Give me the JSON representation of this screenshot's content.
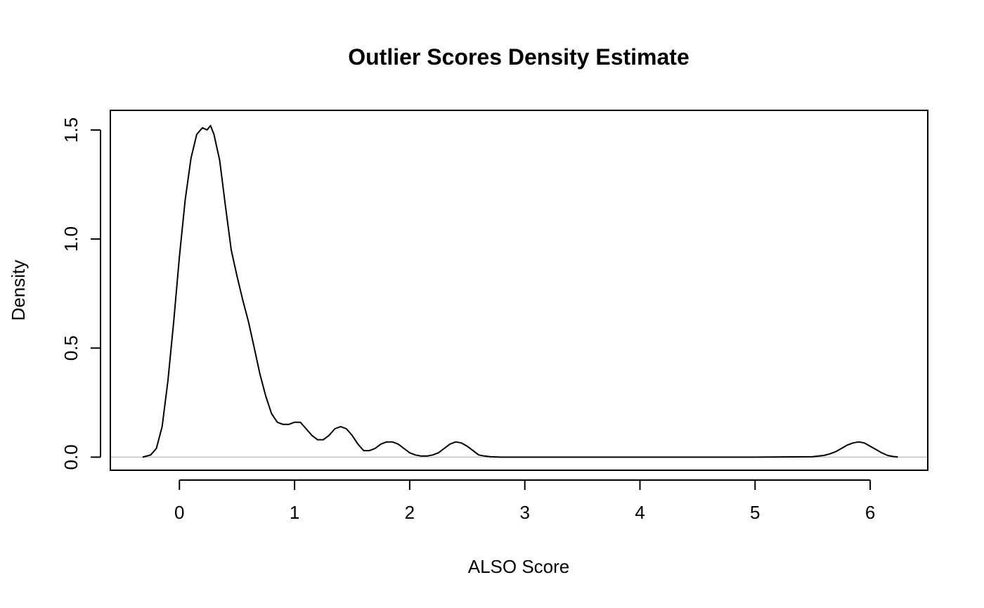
{
  "chart_data": {
    "type": "line",
    "title": "Outlier Scores Density Estimate",
    "xlabel": "ALSO Score",
    "ylabel": "Density",
    "xlim": [
      -0.6,
      6.5
    ],
    "ylim": [
      -0.06,
      1.59
    ],
    "x_ticks": [
      0,
      1,
      2,
      3,
      4,
      5,
      6
    ],
    "x_tick_labels": [
      "0",
      "1",
      "2",
      "3",
      "4",
      "5",
      "6"
    ],
    "y_ticks": [
      0.0,
      0.5,
      1.0,
      1.5
    ],
    "y_tick_labels": [
      "0.0",
      "0.5",
      "1.0",
      "1.5"
    ],
    "baseline": 0,
    "baseline_color": "#c0c0c0",
    "line_color": "#000000",
    "grid": false,
    "series": [
      {
        "x": [
          -0.32,
          -0.25,
          -0.2,
          -0.15,
          -0.1,
          -0.05,
          0.0,
          0.05,
          0.1,
          0.15,
          0.2,
          0.24,
          0.27,
          0.3,
          0.35,
          0.4,
          0.45,
          0.5,
          0.55,
          0.6,
          0.65,
          0.7,
          0.75,
          0.8,
          0.85,
          0.9,
          0.95,
          1.0,
          1.05,
          1.1,
          1.15,
          1.2,
          1.25,
          1.3,
          1.35,
          1.4,
          1.45,
          1.5,
          1.55,
          1.6,
          1.65,
          1.7,
          1.75,
          1.8,
          1.85,
          1.9,
          1.95,
          2.0,
          2.05,
          2.1,
          2.15,
          2.2,
          2.25,
          2.3,
          2.35,
          2.4,
          2.45,
          2.5,
          2.55,
          2.6,
          2.65,
          2.7,
          2.75,
          2.8,
          2.9,
          3.0,
          3.5,
          4.0,
          4.5,
          5.0,
          5.5,
          5.6,
          5.65,
          5.7,
          5.75,
          5.8,
          5.85,
          5.9,
          5.95,
          6.0,
          6.05,
          6.1,
          6.15,
          6.2,
          6.24
        ],
        "y": [
          0.0,
          0.01,
          0.04,
          0.14,
          0.35,
          0.62,
          0.92,
          1.18,
          1.37,
          1.48,
          1.51,
          1.5,
          1.52,
          1.48,
          1.36,
          1.15,
          0.95,
          0.83,
          0.72,
          0.62,
          0.5,
          0.38,
          0.28,
          0.2,
          0.16,
          0.15,
          0.15,
          0.16,
          0.16,
          0.13,
          0.1,
          0.08,
          0.08,
          0.1,
          0.13,
          0.14,
          0.13,
          0.1,
          0.06,
          0.03,
          0.03,
          0.04,
          0.06,
          0.07,
          0.07,
          0.06,
          0.04,
          0.02,
          0.01,
          0.005,
          0.005,
          0.01,
          0.02,
          0.04,
          0.06,
          0.07,
          0.065,
          0.05,
          0.03,
          0.01,
          0.005,
          0.002,
          0.001,
          0.0,
          0.0,
          0.0,
          0.0,
          0.0,
          0.0,
          0.0,
          0.002,
          0.008,
          0.015,
          0.025,
          0.04,
          0.055,
          0.065,
          0.07,
          0.065,
          0.05,
          0.035,
          0.02,
          0.008,
          0.003,
          0.001
        ]
      }
    ]
  }
}
